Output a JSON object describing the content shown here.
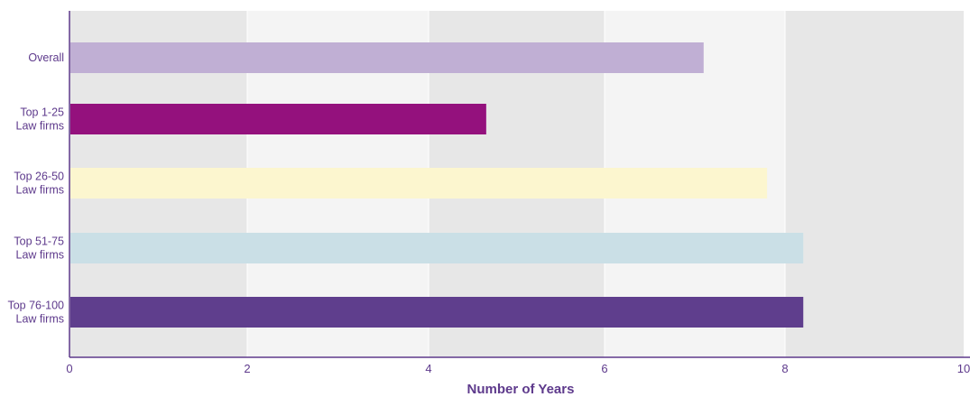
{
  "chart_data": {
    "type": "bar",
    "orientation": "horizontal",
    "title": "",
    "xlabel": "Number of Years",
    "ylabel": "",
    "xlim": [
      0,
      10
    ],
    "xticks": [
      "0",
      "2",
      "4",
      "6",
      "8",
      "10"
    ],
    "categories": [
      [
        "Overall"
      ],
      [
        "Top 1-25",
        "Law firms"
      ],
      [
        "Top 26-50",
        "Law firms"
      ],
      [
        "Top 51-75",
        "Law firms"
      ],
      [
        "Top 76-100",
        "Law firms"
      ]
    ],
    "values": [
      7.0,
      4.6,
      7.7,
      8.1,
      8.1
    ],
    "bar_colors": [
      "#c0afd4",
      "#94117d",
      "#fcf6cf",
      "#cadfe6",
      "#5f3e8d"
    ],
    "grid": "alternating vertical bands",
    "band_colors": [
      "#e7e7e7",
      "#f4f4f4"
    ],
    "axis_color": "#5e3a8c"
  }
}
